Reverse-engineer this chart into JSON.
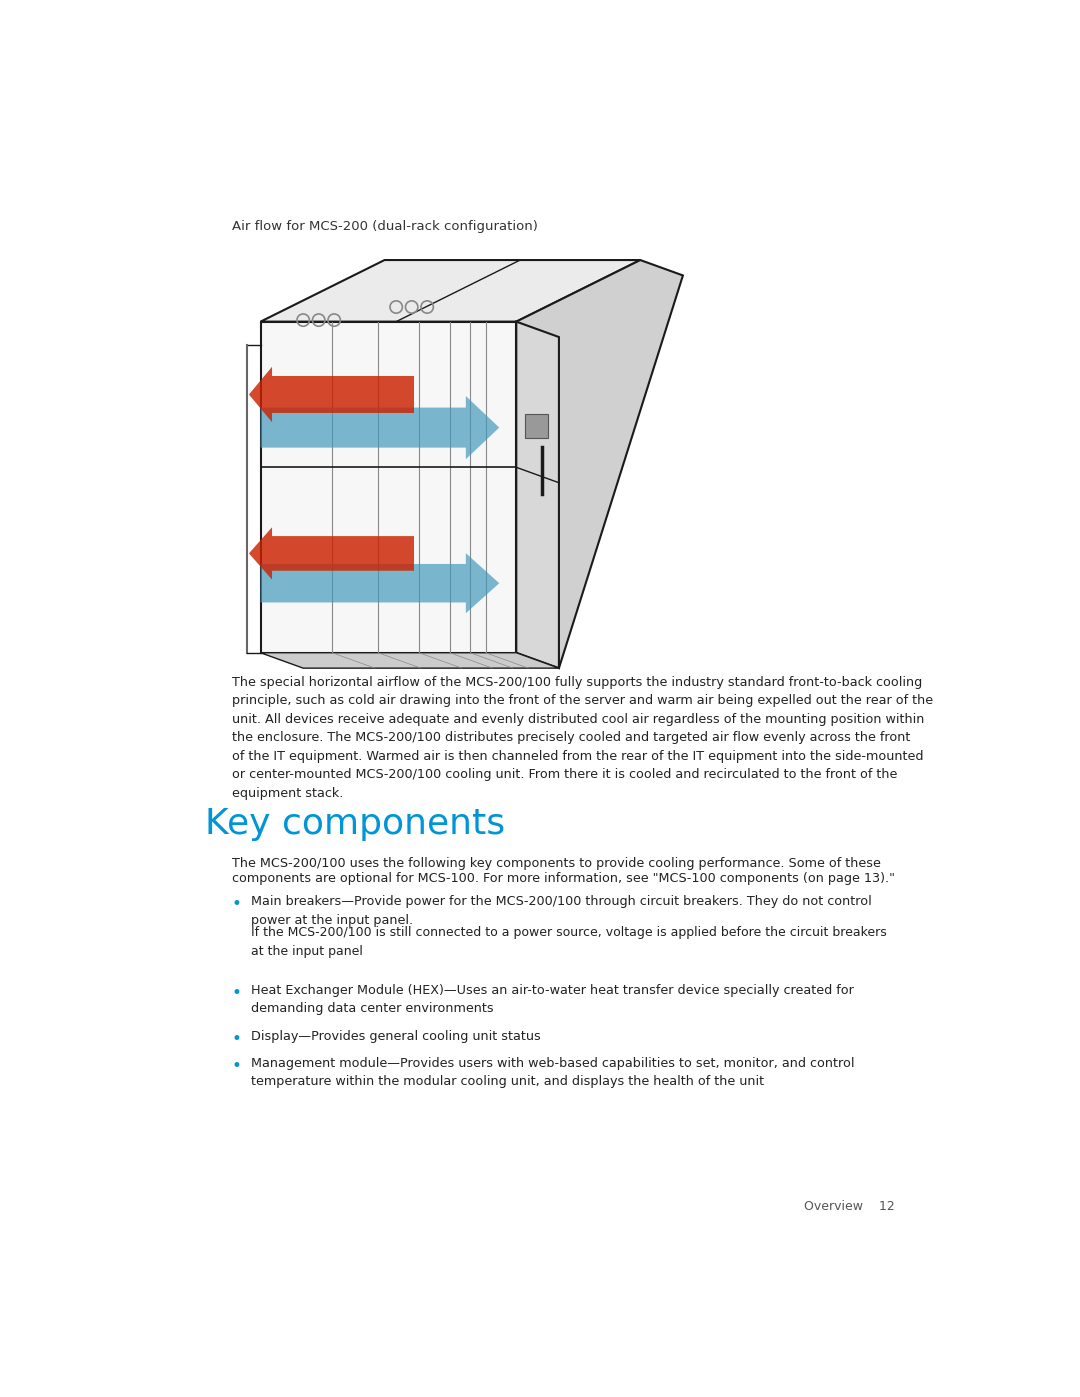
{
  "page_bg": "#ffffff",
  "caption": "Air flow for MCS-200 (dual-rack configuration)",
  "caption_color": "#333333",
  "caption_fontsize": 9.5,
  "body_text_1": "The special horizontal airflow of the MCS-200/100 fully supports the industry standard front-to-back cooling\nprinciple, such as cold air drawing into the front of the server and warm air being expelled out the rear of the\nunit. All devices receive adequate and evenly distributed cool air regardless of the mounting position within\nthe enclosure. The MCS-200/100 distributes precisely cooled and targeted air flow evenly across the front\nof the IT equipment. Warmed air is then channeled from the rear of the IT equipment into the side-mounted\nor center-mounted MCS-200/100 cooling unit. From there it is cooled and recirculated to the front of the\nequipment stack.",
  "body_fontsize": 9.2,
  "body_color": "#222222",
  "section_title": "Key components",
  "section_title_color": "#0096D6",
  "section_title_fontsize": 26,
  "intro_line1": "The MCS-200/100 uses the following key components to provide cooling performance. Some of these",
  "intro_line2_pre": "components are optional for MCS-100. For more information, see \"MCS-100 components (on page ",
  "intro_line2_ref": "13",
  "intro_line2_post": ").\"",
  "intro_color": "#222222",
  "intro_ref_color": "#0096D6",
  "intro_fontsize": 9.2,
  "bullets": [
    {
      "text": "Main breakers—Provide power for the MCS-200/100 through circuit breakers. They do not control\npower at the input panel.",
      "sub": "If the MCS-200/100 is still connected to a power source, voltage is applied before the circuit breakers\nat the input panel"
    },
    {
      "text": "Heat Exchanger Module (HEX)—Uses an air-to-water heat transfer device specially created for\ndemanding data center environments",
      "sub": null
    },
    {
      "text": "Display—Provides general cooling unit status",
      "sub": null
    },
    {
      "text": "Management module—Provides users with web-based capabilities to set, monitor, and control\ntemperature within the modular cooling unit, and displays the health of the unit",
      "sub": null
    }
  ],
  "bullet_color": "#222222",
  "bullet_dot_color": "#0096D6",
  "bullet_fontsize": 9.2,
  "sub_fontsize": 9.0,
  "footer_text": "Overview    12",
  "footer_color": "#555555",
  "footer_fontsize": 9.0
}
